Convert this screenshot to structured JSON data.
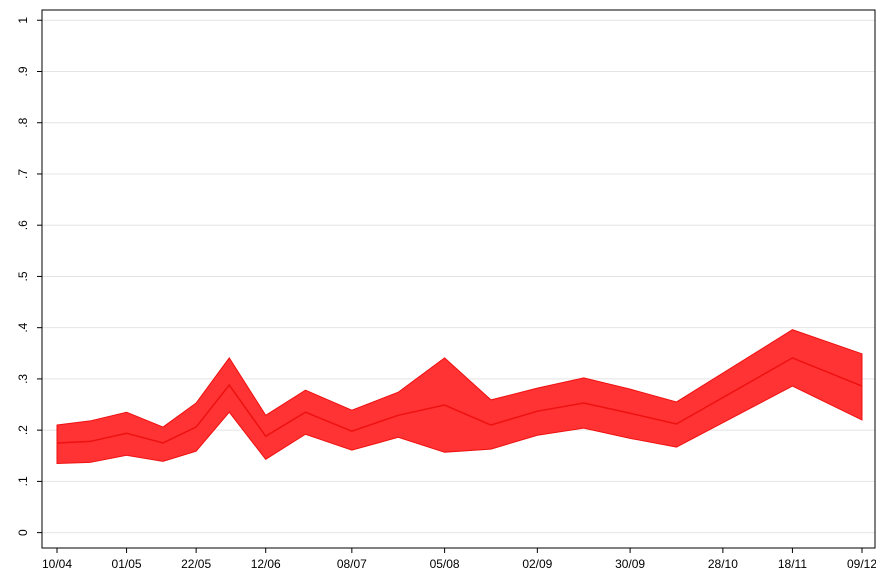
{
  "chart_data": {
    "type": "line",
    "x": [
      "10/04",
      "20/04",
      "01/05",
      "12/05",
      "22/05",
      "01/06",
      "12/06",
      "24/06",
      "08/07",
      "22/07",
      "05/08",
      "19/08",
      "02/09",
      "16/09",
      "30/09",
      "14/10",
      "18/11",
      "09/12"
    ],
    "values": [
      0.175,
      0.178,
      0.194,
      0.175,
      0.206,
      0.288,
      0.188,
      0.235,
      0.198,
      0.229,
      0.249,
      0.21,
      0.237,
      0.253,
      0.233,
      0.212,
      0.341,
      0.286
    ],
    "upper": [
      0.21,
      0.218,
      0.235,
      0.206,
      0.253,
      0.341,
      0.229,
      0.278,
      0.239,
      0.274,
      0.341,
      0.259,
      0.282,
      0.302,
      0.28,
      0.255,
      0.396,
      0.349
    ],
    "lower": [
      0.135,
      0.137,
      0.151,
      0.139,
      0.159,
      0.235,
      0.143,
      0.192,
      0.161,
      0.186,
      0.157,
      0.163,
      0.19,
      0.204,
      0.184,
      0.167,
      0.286,
      0.22
    ],
    "color": "#ee1111",
    "band_color": "#ff3333",
    "ylim": [
      -0.03,
      1.02
    ],
    "yticks": [
      0,
      {
        "value": 0.1,
        "label": ".1"
      },
      {
        "value": 0.2,
        "label": ".2"
      },
      {
        "value": 0.3,
        "label": ".3"
      },
      {
        "value": 0.4,
        "label": ".4"
      },
      {
        "value": 0.5,
        "label": ".5"
      },
      {
        "value": 0.6,
        "label": ".6"
      },
      {
        "value": 0.7,
        "label": ".7"
      },
      {
        "value": 0.8,
        "label": ".8"
      },
      {
        "value": 0.9,
        "label": ".9"
      },
      1
    ],
    "xticks": [
      "10/04",
      "01/05",
      "22/05",
      "12/06",
      "08/07",
      "05/08",
      "02/09",
      "30/09",
      "28/10",
      "18/11",
      "09/12"
    ],
    "grid": true
  }
}
